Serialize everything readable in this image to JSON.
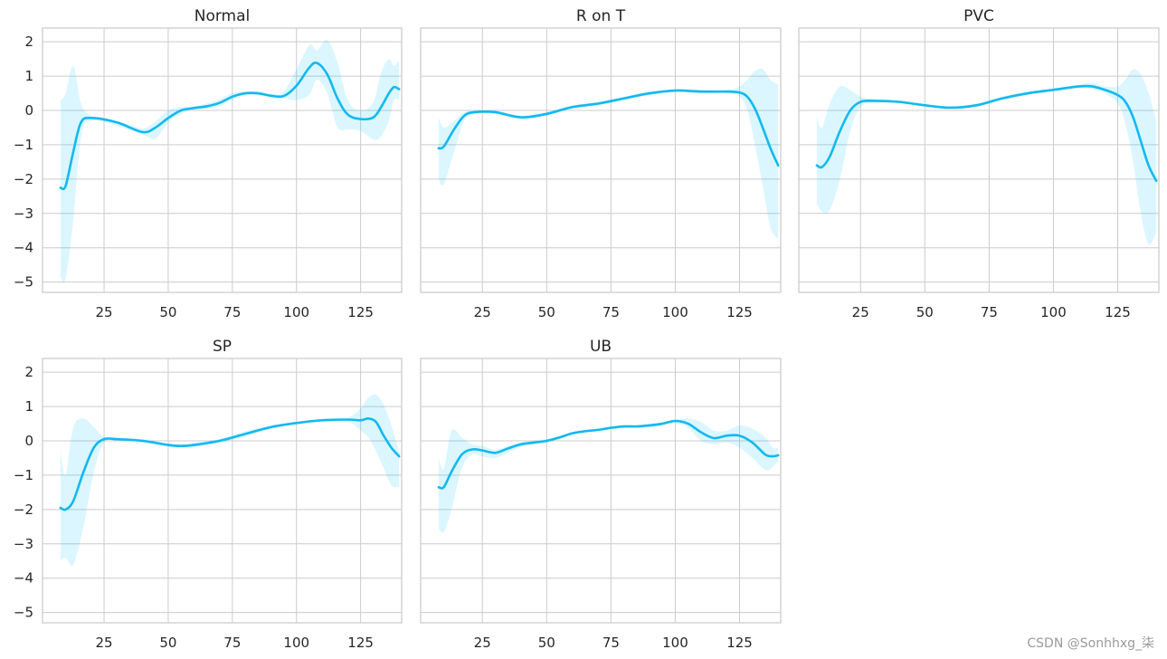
{
  "watermark": "CSDN @Sonhhxg_柒",
  "colors": {
    "line": "#12b9f0",
    "band": "#00bfff",
    "grid": "#cccccc"
  },
  "chart_data": [
    {
      "type": "line",
      "title": "Normal",
      "xlim": [
        1,
        141
      ],
      "ylim": [
        -5.3,
        2.4
      ],
      "xticks": [
        25,
        50,
        75,
        100,
        125
      ],
      "yticks": [
        2,
        1,
        0,
        -1,
        -2,
        -3,
        -4,
        -5
      ],
      "grid": true,
      "show_yticks": true,
      "show_xticks": true,
      "x": [
        8,
        10,
        13,
        16,
        20,
        30,
        40,
        45,
        50,
        55,
        60,
        65,
        70,
        75,
        80,
        85,
        90,
        95,
        100,
        105,
        108,
        112,
        116,
        120,
        125,
        130,
        133,
        136,
        138,
        140
      ],
      "mean": [
        -2.25,
        -2.2,
        -1.2,
        -0.35,
        -0.22,
        -0.35,
        -0.63,
        -0.5,
        -0.22,
        0.0,
        0.07,
        0.12,
        0.22,
        0.4,
        0.5,
        0.5,
        0.43,
        0.42,
        0.72,
        1.25,
        1.38,
        1.05,
        0.35,
        -0.12,
        -0.25,
        -0.2,
        0.1,
        0.5,
        0.68,
        0.62
      ],
      "upper": [
        0.3,
        0.5,
        1.3,
        0.2,
        -0.15,
        -0.3,
        -0.52,
        -0.32,
        0.0,
        0.1,
        0.12,
        0.2,
        0.33,
        0.5,
        0.55,
        0.55,
        0.48,
        0.55,
        1.2,
        1.9,
        1.75,
        2.05,
        1.4,
        0.3,
        0.0,
        0.25,
        1.1,
        1.5,
        1.3,
        1.45
      ],
      "lower": [
        -4.85,
        -4.9,
        -3.2,
        -0.8,
        -0.3,
        -0.45,
        -0.7,
        -0.82,
        -0.35,
        -0.1,
        0.02,
        0.05,
        0.12,
        0.3,
        0.45,
        0.45,
        0.38,
        0.35,
        0.3,
        0.45,
        0.9,
        0.5,
        -0.5,
        -0.55,
        -0.6,
        -0.85,
        -0.75,
        -0.3,
        0.3,
        0.3
      ]
    },
    {
      "type": "line",
      "title": "R on T",
      "xlim": [
        1,
        141
      ],
      "ylim": [
        -5.3,
        2.4
      ],
      "xticks": [
        25,
        50,
        75,
        100,
        125
      ],
      "yticks": [
        2,
        1,
        0,
        -1,
        -2,
        -3,
        -4,
        -5
      ],
      "grid": true,
      "show_yticks": false,
      "show_xticks": true,
      "x": [
        8,
        10,
        14,
        18,
        22,
        30,
        40,
        50,
        60,
        70,
        80,
        90,
        100,
        110,
        120,
        125,
        128,
        131,
        134,
        137,
        140
      ],
      "mean": [
        -1.1,
        -1.05,
        -0.55,
        -0.15,
        -0.05,
        -0.05,
        -0.2,
        -0.1,
        0.1,
        0.2,
        0.35,
        0.5,
        0.58,
        0.55,
        0.55,
        0.52,
        0.4,
        0.05,
        -0.5,
        -1.1,
        -1.6
      ],
      "upper": [
        -0.2,
        -0.5,
        -0.3,
        -0.05,
        0.0,
        0.0,
        -0.15,
        -0.05,
        0.15,
        0.25,
        0.4,
        0.55,
        0.62,
        0.6,
        0.6,
        0.7,
        0.9,
        1.15,
        1.2,
        0.9,
        0.75
      ],
      "lower": [
        -2.0,
        -2.15,
        -1.2,
        -0.3,
        -0.1,
        -0.1,
        -0.25,
        -0.15,
        0.05,
        0.15,
        0.3,
        0.45,
        0.54,
        0.5,
        0.5,
        0.4,
        0.0,
        -1.0,
        -2.2,
        -3.4,
        -3.75
      ]
    },
    {
      "type": "line",
      "title": "PVC",
      "xlim": [
        1,
        141
      ],
      "ylim": [
        -5.3,
        2.4
      ],
      "xticks": [
        25,
        50,
        75,
        100,
        125
      ],
      "yticks": [
        2,
        1,
        0,
        -1,
        -2,
        -3,
        -4,
        -5
      ],
      "grid": true,
      "show_yticks": false,
      "show_xticks": true,
      "x": [
        8,
        10,
        13,
        17,
        21,
        25,
        30,
        40,
        50,
        60,
        70,
        80,
        90,
        100,
        110,
        115,
        120,
        125,
        128,
        131,
        134,
        137,
        140
      ],
      "mean": [
        -1.6,
        -1.65,
        -1.35,
        -0.6,
        0.0,
        0.25,
        0.28,
        0.25,
        0.15,
        0.08,
        0.15,
        0.35,
        0.5,
        0.6,
        0.7,
        0.7,
        0.6,
        0.45,
        0.25,
        -0.2,
        -0.9,
        -1.6,
        -2.05
      ],
      "upper": [
        -0.2,
        -0.5,
        0.2,
        0.7,
        0.6,
        0.4,
        0.35,
        0.28,
        0.18,
        0.12,
        0.2,
        0.4,
        0.55,
        0.65,
        0.75,
        0.8,
        0.7,
        0.7,
        0.9,
        1.2,
        1.05,
        0.5,
        -0.3
      ],
      "lower": [
        -2.7,
        -2.95,
        -2.9,
        -2.0,
        -0.6,
        0.1,
        0.22,
        0.22,
        0.12,
        0.05,
        0.1,
        0.3,
        0.45,
        0.55,
        0.65,
        0.62,
        0.5,
        0.2,
        -0.4,
        -1.5,
        -3.0,
        -3.9,
        -3.55
      ]
    },
    {
      "type": "line",
      "title": "SP",
      "xlim": [
        1,
        141
      ],
      "ylim": [
        -5.3,
        2.4
      ],
      "xticks": [
        25,
        50,
        75,
        100,
        125
      ],
      "yticks": [
        2,
        1,
        0,
        -1,
        -2,
        -3,
        -4,
        -5
      ],
      "grid": true,
      "show_yticks": true,
      "show_xticks": true,
      "x": [
        8,
        10,
        13,
        17,
        21,
        25,
        30,
        40,
        50,
        55,
        60,
        70,
        80,
        90,
        100,
        110,
        120,
        125,
        128,
        131,
        134,
        137,
        140
      ],
      "mean": [
        -1.95,
        -2.0,
        -1.75,
        -0.9,
        -0.2,
        0.05,
        0.05,
        0.0,
        -0.12,
        -0.15,
        -0.12,
        0.0,
        0.2,
        0.4,
        0.52,
        0.6,
        0.62,
        0.6,
        0.65,
        0.55,
        0.15,
        -0.2,
        -0.45
      ],
      "upper": [
        -0.3,
        -1.0,
        0.4,
        0.65,
        0.4,
        0.12,
        0.1,
        0.05,
        -0.08,
        -0.1,
        -0.05,
        0.05,
        0.28,
        0.45,
        0.55,
        0.65,
        0.68,
        0.95,
        1.25,
        1.35,
        1.05,
        0.45,
        -0.3
      ],
      "lower": [
        -3.5,
        -3.4,
        -3.6,
        -2.5,
        -0.9,
        -0.05,
        0.0,
        -0.05,
        -0.18,
        -0.2,
        -0.18,
        -0.05,
        0.12,
        0.35,
        0.48,
        0.55,
        0.55,
        0.3,
        0.1,
        -0.3,
        -0.8,
        -1.3,
        -1.35
      ]
    },
    {
      "type": "line",
      "title": "UB",
      "xlim": [
        1,
        141
      ],
      "ylim": [
        -5.3,
        2.4
      ],
      "xticks": [
        25,
        50,
        75,
        100,
        125
      ],
      "yticks": [
        2,
        1,
        0,
        -1,
        -2,
        -3,
        -4,
        -5
      ],
      "grid": true,
      "show_yticks": false,
      "show_xticks": true,
      "x": [
        8,
        10,
        13,
        17,
        21,
        25,
        30,
        35,
        40,
        45,
        50,
        55,
        60,
        65,
        70,
        75,
        80,
        85,
        90,
        95,
        100,
        105,
        110,
        115,
        120,
        125,
        130,
        135,
        138,
        140
      ],
      "mean": [
        -1.35,
        -1.35,
        -0.9,
        -0.4,
        -0.25,
        -0.28,
        -0.35,
        -0.22,
        -0.1,
        -0.05,
        0.0,
        0.1,
        0.22,
        0.28,
        0.32,
        0.38,
        0.42,
        0.42,
        0.45,
        0.5,
        0.58,
        0.5,
        0.25,
        0.08,
        0.15,
        0.15,
        -0.05,
        -0.4,
        -0.45,
        -0.42
      ],
      "upper": [
        -0.5,
        -0.8,
        0.3,
        0.1,
        -0.1,
        -0.15,
        -0.25,
        -0.15,
        -0.05,
        0.0,
        0.05,
        0.15,
        0.25,
        0.32,
        0.36,
        0.42,
        0.46,
        0.46,
        0.5,
        0.55,
        0.62,
        0.65,
        0.55,
        0.3,
        0.3,
        0.45,
        0.35,
        0.1,
        -0.2,
        -0.2
      ],
      "lower": [
        -2.55,
        -2.65,
        -2.0,
        -0.8,
        -0.4,
        -0.45,
        -0.5,
        -0.35,
        -0.18,
        -0.1,
        -0.05,
        0.05,
        0.18,
        0.24,
        0.28,
        0.34,
        0.38,
        0.38,
        0.4,
        0.45,
        0.54,
        0.38,
        0.0,
        -0.1,
        -0.05,
        -0.2,
        -0.5,
        -0.85,
        -0.75,
        -0.6
      ]
    }
  ]
}
